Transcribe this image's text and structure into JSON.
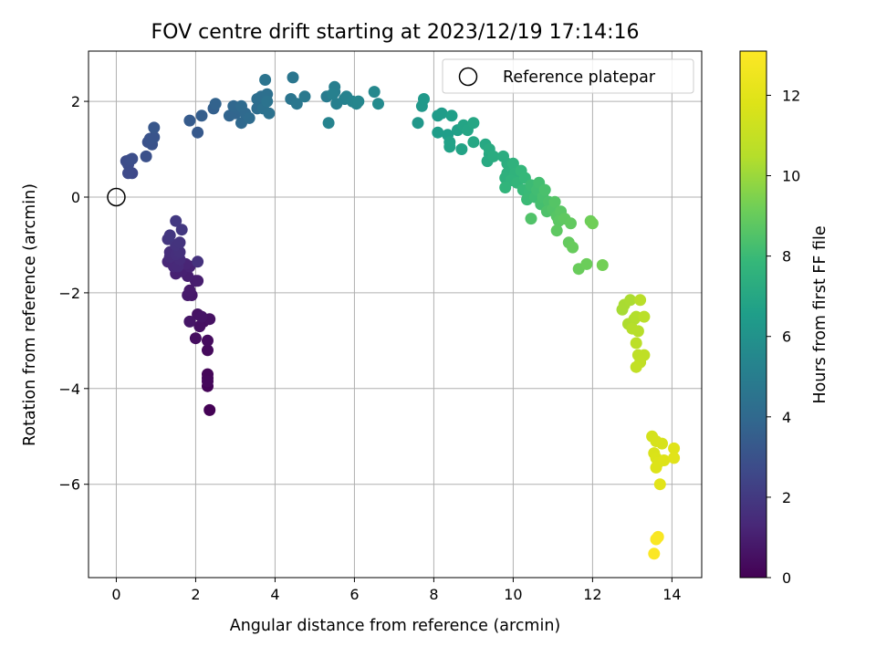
{
  "chart_data": {
    "type": "scatter",
    "title": "FOV centre drift starting at 2023/12/19 17:14:16",
    "xlabel": "Angular distance from reference (arcmin)",
    "ylabel": "Rotation from reference (arcmin)",
    "xlim": [
      -0.7,
      14.75
    ],
    "ylim": [
      -7.95,
      3.05
    ],
    "xticks": [
      0,
      2,
      4,
      6,
      8,
      10,
      12,
      14
    ],
    "yticks": [
      2,
      0,
      -2,
      -4,
      -6
    ],
    "grid": true,
    "legend": {
      "position": "top-right",
      "entries": [
        "Reference platepar"
      ]
    },
    "reference_point": {
      "x": 0,
      "y": 0,
      "marker": "open-circle"
    },
    "colorbar": {
      "label": "Hours from first FF file",
      "range": [
        0,
        13.1
      ],
      "ticks": [
        0,
        2,
        4,
        6,
        8,
        10,
        12
      ],
      "colormap": "viridis"
    },
    "points": [
      [
        2.35,
        -4.45,
        0.05
      ],
      [
        2.3,
        -3.95,
        0.1
      ],
      [
        2.3,
        -3.78,
        0.15
      ],
      [
        2.3,
        -3.7,
        0.2
      ],
      [
        2.3,
        -3.85,
        0.25
      ],
      [
        2.3,
        -3.2,
        0.3
      ],
      [
        2.3,
        -3.0,
        0.35
      ],
      [
        2.0,
        -2.95,
        0.4
      ],
      [
        2.2,
        -2.6,
        0.45
      ],
      [
        2.1,
        -2.7,
        0.5
      ],
      [
        2.35,
        -2.55,
        0.55
      ],
      [
        2.05,
        -2.45,
        0.6
      ],
      [
        2.15,
        -2.5,
        0.65
      ],
      [
        1.85,
        -2.6,
        0.7
      ],
      [
        1.9,
        -2.05,
        0.75
      ],
      [
        1.8,
        -2.05,
        0.8
      ],
      [
        1.85,
        -1.95,
        0.85
      ],
      [
        2.0,
        -1.75,
        0.9
      ],
      [
        2.05,
        -1.75,
        0.95
      ],
      [
        1.8,
        -1.65,
        1.0
      ],
      [
        1.65,
        -1.55,
        1.05
      ],
      [
        1.5,
        -1.6,
        1.1
      ],
      [
        1.85,
        -1.45,
        1.15
      ],
      [
        1.75,
        -1.4,
        1.2
      ],
      [
        1.5,
        -1.35,
        1.25
      ],
      [
        1.3,
        -1.35,
        1.3
      ],
      [
        1.45,
        -1.45,
        1.35
      ],
      [
        1.55,
        -1.45,
        1.4
      ],
      [
        1.6,
        -1.3,
        1.45
      ],
      [
        1.35,
        -1.25,
        1.5
      ],
      [
        1.35,
        -1.15,
        1.55
      ],
      [
        1.5,
        -1.2,
        1.6
      ],
      [
        1.6,
        -1.15,
        1.65
      ],
      [
        2.05,
        -1.35,
        1.7
      ],
      [
        1.5,
        -1.0,
        1.75
      ],
      [
        1.6,
        -0.95,
        1.8
      ],
      [
        1.3,
        -0.88,
        1.85
      ],
      [
        1.35,
        -0.8,
        1.9
      ],
      [
        1.65,
        -0.68,
        1.95
      ],
      [
        1.5,
        -0.5,
        2.0
      ],
      [
        0.4,
        0.5,
        2.6
      ],
      [
        0.3,
        0.5,
        2.65
      ],
      [
        0.3,
        0.68,
        2.7
      ],
      [
        0.25,
        0.75,
        2.75
      ],
      [
        0.35,
        0.78,
        2.8
      ],
      [
        0.4,
        0.8,
        2.85
      ],
      [
        0.75,
        0.85,
        2.9
      ],
      [
        0.8,
        1.15,
        2.95
      ],
      [
        0.9,
        1.1,
        3.0
      ],
      [
        0.85,
        1.22,
        3.05
      ],
      [
        0.95,
        1.25,
        3.1
      ],
      [
        0.95,
        1.45,
        3.2
      ],
      [
        2.05,
        1.35,
        3.3
      ],
      [
        1.85,
        1.6,
        3.4
      ],
      [
        2.15,
        1.7,
        3.5
      ],
      [
        2.45,
        1.85,
        3.6
      ],
      [
        2.5,
        1.95,
        3.7
      ],
      [
        2.85,
        1.7,
        3.8
      ],
      [
        3.0,
        1.75,
        3.85
      ],
      [
        3.05,
        1.85,
        3.9
      ],
      [
        2.95,
        1.9,
        3.95
      ],
      [
        3.15,
        1.55,
        4.0
      ],
      [
        3.25,
        1.75,
        4.05
      ],
      [
        3.15,
        1.9,
        4.1
      ],
      [
        3.35,
        1.65,
        4.15
      ],
      [
        3.55,
        1.85,
        4.2
      ],
      [
        3.55,
        2.05,
        4.25
      ],
      [
        3.65,
        2.1,
        4.3
      ],
      [
        3.8,
        2.15,
        4.35
      ],
      [
        3.7,
        1.85,
        4.4
      ],
      [
        3.85,
        1.75,
        4.45
      ],
      [
        3.8,
        2.0,
        4.5
      ],
      [
        3.75,
        2.45,
        4.55
      ],
      [
        4.4,
        2.05,
        4.6
      ],
      [
        4.45,
        2.5,
        4.65
      ],
      [
        4.55,
        1.95,
        4.7
      ],
      [
        4.75,
        2.1,
        4.8
      ],
      [
        5.3,
        2.1,
        4.9
      ],
      [
        5.5,
        2.2,
        5.0
      ],
      [
        5.5,
        2.3,
        5.05
      ],
      [
        5.55,
        1.95,
        5.1
      ],
      [
        5.45,
        2.15,
        5.15
      ],
      [
        5.75,
        2.05,
        5.2
      ],
      [
        5.8,
        2.1,
        5.25
      ],
      [
        5.35,
        1.55,
        5.3
      ],
      [
        5.95,
        2.0,
        5.35
      ],
      [
        6.05,
        1.95,
        5.4
      ],
      [
        6.1,
        2.0,
        5.45
      ],
      [
        6.5,
        2.2,
        5.5
      ],
      [
        6.6,
        1.95,
        5.6
      ],
      [
        7.6,
        1.55,
        6.2
      ],
      [
        7.7,
        1.9,
        6.25
      ],
      [
        7.75,
        2.05,
        6.3
      ],
      [
        8.1,
        1.7,
        6.4
      ],
      [
        8.2,
        1.75,
        6.45
      ],
      [
        8.1,
        1.35,
        6.5
      ],
      [
        8.35,
        1.3,
        6.55
      ],
      [
        8.45,
        1.7,
        6.6
      ],
      [
        8.6,
        1.4,
        6.65
      ],
      [
        8.4,
        1.15,
        6.7
      ],
      [
        8.4,
        1.05,
        6.75
      ],
      [
        8.7,
        1.0,
        6.8
      ],
      [
        8.75,
        1.5,
        6.85
      ],
      [
        8.85,
        1.4,
        6.9
      ],
      [
        9.0,
        1.55,
        6.95
      ],
      [
        9.0,
        1.15,
        7.0
      ],
      [
        9.3,
        1.1,
        7.05
      ],
      [
        9.4,
        0.9,
        7.1
      ],
      [
        9.35,
        0.75,
        7.15
      ],
      [
        9.4,
        1.0,
        7.2
      ],
      [
        9.5,
        0.85,
        7.25
      ],
      [
        9.75,
        0.85,
        7.3
      ],
      [
        9.85,
        0.7,
        7.35
      ],
      [
        9.9,
        0.65,
        7.4
      ],
      [
        9.85,
        0.5,
        7.45
      ],
      [
        9.8,
        0.4,
        7.5
      ],
      [
        10.0,
        0.7,
        7.55
      ],
      [
        10.05,
        0.5,
        7.6
      ],
      [
        9.95,
        0.35,
        7.65
      ],
      [
        9.8,
        0.2,
        7.7
      ],
      [
        10.1,
        0.3,
        7.75
      ],
      [
        10.2,
        0.55,
        7.8
      ],
      [
        10.3,
        0.4,
        7.85
      ],
      [
        10.25,
        0.15,
        7.9
      ],
      [
        10.4,
        0.1,
        7.95
      ],
      [
        10.35,
        -0.05,
        8.0
      ],
      [
        10.45,
        0.25,
        8.05
      ],
      [
        10.55,
        0.0,
        8.1
      ],
      [
        10.6,
        0.15,
        8.15
      ],
      [
        10.65,
        0.3,
        8.2
      ],
      [
        10.7,
        -0.15,
        8.25
      ],
      [
        10.75,
        0.0,
        8.3
      ],
      [
        10.8,
        0.15,
        8.35
      ],
      [
        10.9,
        -0.1,
        8.4
      ],
      [
        10.85,
        -0.3,
        8.45
      ],
      [
        10.45,
        -0.45,
        8.5
      ],
      [
        11.0,
        -0.25,
        8.55
      ],
      [
        11.05,
        -0.1,
        8.6
      ],
      [
        11.1,
        -0.4,
        8.65
      ],
      [
        11.2,
        -0.3,
        8.7
      ],
      [
        11.15,
        -0.5,
        8.75
      ],
      [
        11.1,
        -0.7,
        8.8
      ],
      [
        11.3,
        -0.45,
        8.85
      ],
      [
        11.45,
        -0.55,
        8.9
      ],
      [
        11.4,
        -0.95,
        8.95
      ],
      [
        11.5,
        -1.05,
        9.0
      ],
      [
        11.65,
        -1.5,
        9.05
      ],
      [
        11.85,
        -1.4,
        9.1
      ],
      [
        11.95,
        -0.5,
        9.15
      ],
      [
        12.0,
        -0.55,
        9.2
      ],
      [
        12.25,
        -1.42,
        9.25
      ],
      [
        12.75,
        -2.35,
        10.2
      ],
      [
        12.8,
        -2.25,
        10.25
      ],
      [
        12.95,
        -2.15,
        10.3
      ],
      [
        12.9,
        -2.65,
        10.35
      ],
      [
        13.05,
        -2.55,
        10.4
      ],
      [
        13.1,
        -2.5,
        10.45
      ],
      [
        13.0,
        -2.75,
        10.5
      ],
      [
        13.15,
        -2.8,
        10.55
      ],
      [
        13.2,
        -2.15,
        10.6
      ],
      [
        13.3,
        -2.5,
        10.65
      ],
      [
        13.1,
        -3.05,
        10.7
      ],
      [
        13.15,
        -3.3,
        10.75
      ],
      [
        13.3,
        -3.3,
        10.8
      ],
      [
        13.2,
        -3.45,
        10.85
      ],
      [
        13.1,
        -3.55,
        10.9
      ],
      [
        13.5,
        -5.0,
        11.5
      ],
      [
        13.6,
        -5.1,
        11.55
      ],
      [
        13.75,
        -5.15,
        11.6
      ],
      [
        13.55,
        -5.35,
        11.65
      ],
      [
        13.6,
        -5.45,
        11.7
      ],
      [
        13.65,
        -5.55,
        11.75
      ],
      [
        13.6,
        -5.65,
        11.8
      ],
      [
        13.8,
        -5.5,
        11.85
      ],
      [
        14.05,
        -5.25,
        11.9
      ],
      [
        14.05,
        -5.45,
        11.95
      ],
      [
        13.7,
        -6.0,
        12.0
      ],
      [
        13.65,
        -7.1,
        12.9
      ],
      [
        13.6,
        -7.15,
        12.95
      ],
      [
        13.55,
        -7.45,
        13.0
      ]
    ]
  }
}
